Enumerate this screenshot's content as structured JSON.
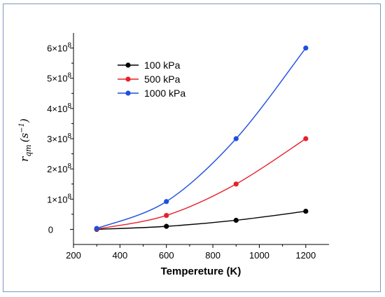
{
  "chart_data": {
    "type": "line",
    "xlabel": "Tempereture (K)",
    "ylabel": "r_qm (s^-1)",
    "ylabel_parts": {
      "main": "r",
      "sub": "qm",
      "unit_open": "(s",
      "unit_sup": "−1",
      "unit_close": ")"
    },
    "xlim": [
      200,
      1300
    ],
    "ylim": [
      -50000000.0,
      650000000.0
    ],
    "x_ticks": [
      200,
      400,
      600,
      800,
      1000,
      1200
    ],
    "x_tick_labels": [
      "200",
      "400",
      "600",
      "800",
      "1000",
      "1200"
    ],
    "y_ticks": [
      0,
      100000000.0,
      200000000.0,
      300000000.0,
      400000000.0,
      500000000.0,
      600000000.0
    ],
    "y_tick_labels": [
      {
        "base": "0",
        "exp": ""
      },
      {
        "base": "1×10",
        "exp": "8"
      },
      {
        "base": "2×10",
        "exp": "8"
      },
      {
        "base": "3×10",
        "exp": "8"
      },
      {
        "base": "4×10",
        "exp": "8"
      },
      {
        "base": "5×10",
        "exp": "8"
      },
      {
        "base": "6×10",
        "exp": "8"
      }
    ],
    "x": [
      300,
      600,
      900,
      1200
    ],
    "series": [
      {
        "name": "100 kPa",
        "color": "#000000",
        "values": [
          0,
          10000000,
          30000000,
          60000000
        ]
      },
      {
        "name": "500 kPa",
        "color": "#e8202a",
        "values": [
          1000000,
          46000000,
          150000000,
          300000000
        ]
      },
      {
        "name": "1000 kPa",
        "color": "#1e4fe0",
        "values": [
          3000000,
          92000000,
          300000000,
          600000000
        ]
      }
    ],
    "legend_position": "top-left",
    "grid": false
  }
}
